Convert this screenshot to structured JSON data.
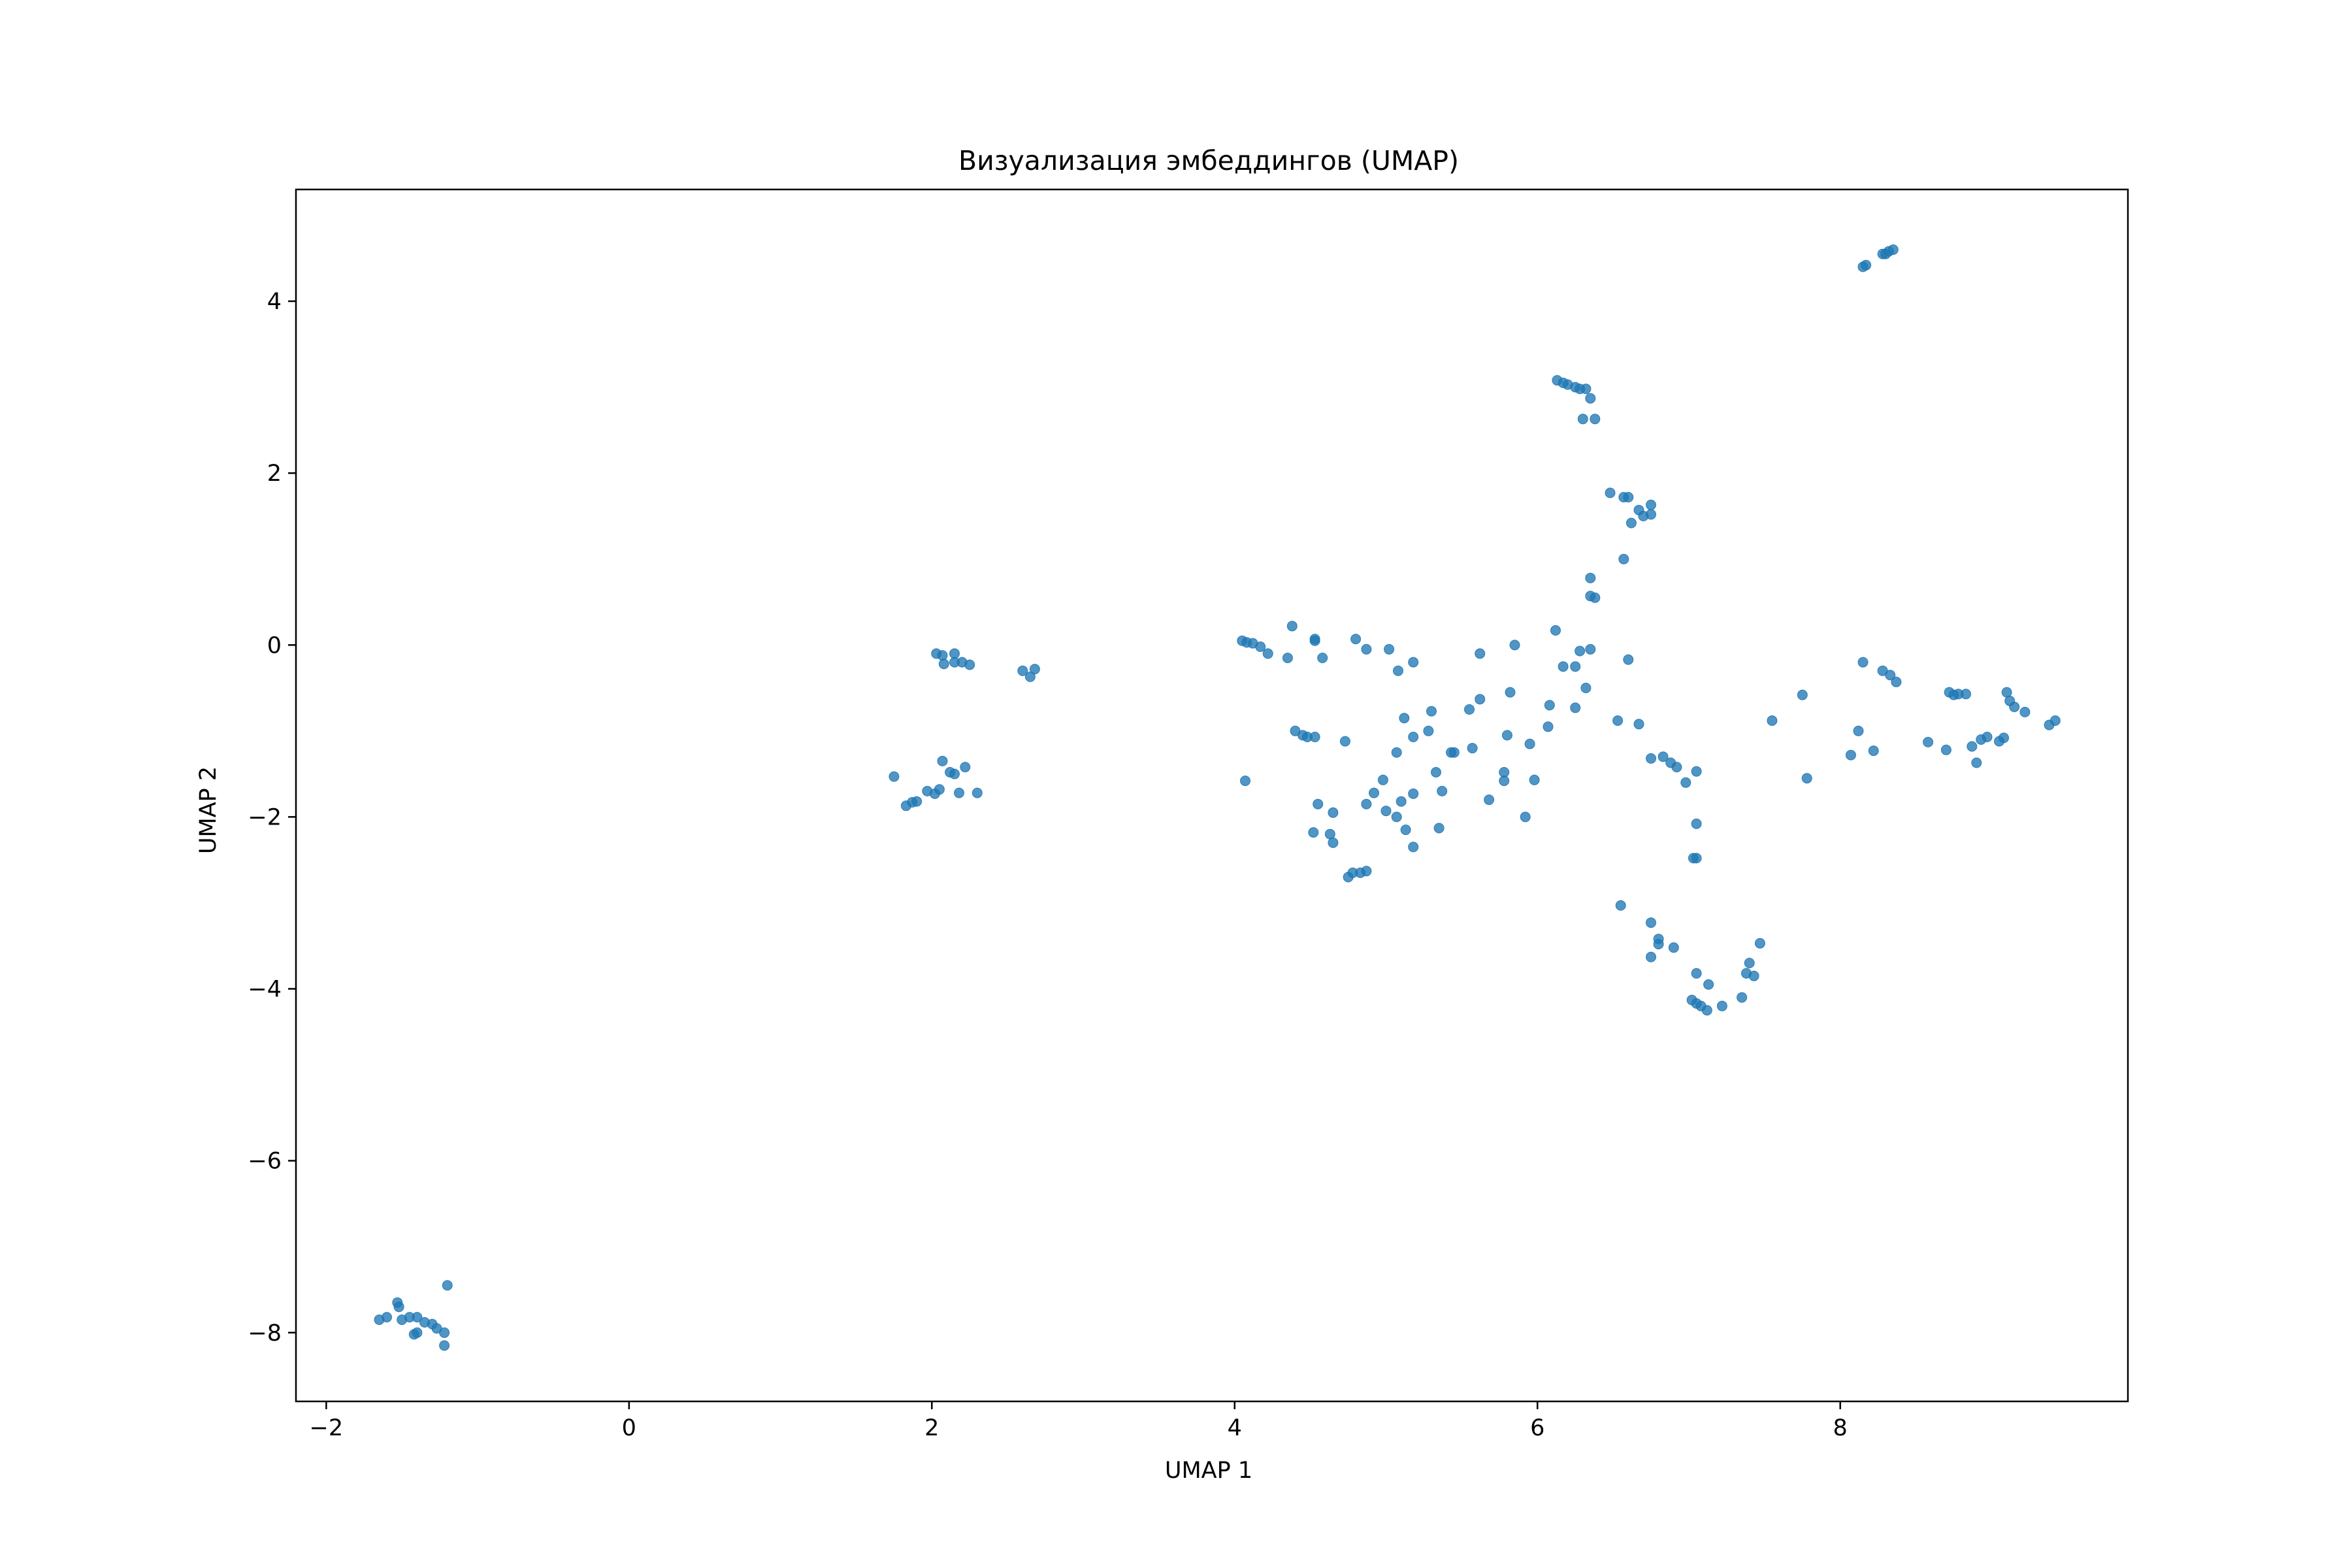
{
  "chart_data": {
    "type": "scatter",
    "title": "Визуализация эмбеддингов (UMAP)",
    "xlabel": "UMAP 1",
    "ylabel": "UMAP 2",
    "xlim": [
      -2.2,
      9.9
    ],
    "ylim": [
      -8.8,
      5.3
    ],
    "xticks": [
      {
        "value": -2,
        "label": "−2"
      },
      {
        "value": 0,
        "label": "0"
      },
      {
        "value": 2,
        "label": "2"
      },
      {
        "value": 4,
        "label": "4"
      },
      {
        "value": 6,
        "label": "6"
      },
      {
        "value": 8,
        "label": "8"
      }
    ],
    "yticks": [
      {
        "value": -8,
        "label": "−8"
      },
      {
        "value": -6,
        "label": "−6"
      },
      {
        "value": -4,
        "label": "−4"
      },
      {
        "value": -2,
        "label": "−2"
      },
      {
        "value": 0,
        "label": "0"
      },
      {
        "value": 2,
        "label": "2"
      },
      {
        "value": 4,
        "label": "4"
      }
    ],
    "grid": false,
    "color": "#1f77b4",
    "points": [
      {
        "x": -1.65,
        "y": -7.85
      },
      {
        "x": -1.6,
        "y": -7.82
      },
      {
        "x": -1.53,
        "y": -7.65
      },
      {
        "x": -1.52,
        "y": -7.7
      },
      {
        "x": -1.5,
        "y": -7.85
      },
      {
        "x": -1.45,
        "y": -7.82
      },
      {
        "x": -1.42,
        "y": -8.02
      },
      {
        "x": -1.4,
        "y": -7.82
      },
      {
        "x": -1.4,
        "y": -8.0
      },
      {
        "x": -1.35,
        "y": -7.88
      },
      {
        "x": -1.3,
        "y": -7.9
      },
      {
        "x": -1.27,
        "y": -7.95
      },
      {
        "x": -1.22,
        "y": -8.0
      },
      {
        "x": -1.22,
        "y": -8.15
      },
      {
        "x": -1.2,
        "y": -7.45
      },
      {
        "x": 1.75,
        "y": -1.53
      },
      {
        "x": 1.83,
        "y": -1.87
      },
      {
        "x": 1.87,
        "y": -1.83
      },
      {
        "x": 1.9,
        "y": -1.82
      },
      {
        "x": 1.97,
        "y": -1.7
      },
      {
        "x": 2.02,
        "y": -1.73
      },
      {
        "x": 2.05,
        "y": -1.68
      },
      {
        "x": 2.07,
        "y": -1.35
      },
      {
        "x": 2.12,
        "y": -1.48
      },
      {
        "x": 2.15,
        "y": -1.5
      },
      {
        "x": 2.22,
        "y": -1.42
      },
      {
        "x": 2.18,
        "y": -1.72
      },
      {
        "x": 2.3,
        "y": -1.72
      },
      {
        "x": 2.03,
        "y": -0.1
      },
      {
        "x": 2.07,
        "y": -0.12
      },
      {
        "x": 2.08,
        "y": -0.22
      },
      {
        "x": 2.15,
        "y": -0.1
      },
      {
        "x": 2.15,
        "y": -0.2
      },
      {
        "x": 2.2,
        "y": -0.2
      },
      {
        "x": 2.25,
        "y": -0.23
      },
      {
        "x": 2.6,
        "y": -0.3
      },
      {
        "x": 2.65,
        "y": -0.37
      },
      {
        "x": 2.68,
        "y": -0.28
      },
      {
        "x": 4.05,
        "y": 0.05
      },
      {
        "x": 4.08,
        "y": 0.03
      },
      {
        "x": 4.12,
        "y": 0.02
      },
      {
        "x": 4.17,
        "y": -0.02
      },
      {
        "x": 4.22,
        "y": -0.1
      },
      {
        "x": 4.35,
        "y": -0.15
      },
      {
        "x": 4.38,
        "y": 0.22
      },
      {
        "x": 4.53,
        "y": 0.05
      },
      {
        "x": 4.53,
        "y": 0.07
      },
      {
        "x": 4.58,
        "y": -0.15
      },
      {
        "x": 4.8,
        "y": 0.07
      },
      {
        "x": 4.87,
        "y": -0.05
      },
      {
        "x": 5.02,
        "y": -0.05
      },
      {
        "x": 5.08,
        "y": -0.3
      },
      {
        "x": 5.18,
        "y": -0.2
      },
      {
        "x": 4.07,
        "y": -1.58
      },
      {
        "x": 4.4,
        "y": -1.0
      },
      {
        "x": 4.45,
        "y": -1.05
      },
      {
        "x": 4.48,
        "y": -1.07
      },
      {
        "x": 4.53,
        "y": -1.07
      },
      {
        "x": 4.55,
        "y": -1.85
      },
      {
        "x": 4.52,
        "y": -2.18
      },
      {
        "x": 4.63,
        "y": -2.2
      },
      {
        "x": 4.65,
        "y": -1.95
      },
      {
        "x": 4.65,
        "y": -2.3
      },
      {
        "x": 4.73,
        "y": -1.12
      },
      {
        "x": 4.75,
        "y": -2.7
      },
      {
        "x": 4.78,
        "y": -2.65
      },
      {
        "x": 4.83,
        "y": -2.65
      },
      {
        "x": 4.87,
        "y": -2.63
      },
      {
        "x": 4.87,
        "y": -1.85
      },
      {
        "x": 4.92,
        "y": -1.72
      },
      {
        "x": 4.98,
        "y": -1.57
      },
      {
        "x": 5.0,
        "y": -1.93
      },
      {
        "x": 5.07,
        "y": -1.25
      },
      {
        "x": 5.07,
        "y": -2.0
      },
      {
        "x": 5.1,
        "y": -1.82
      },
      {
        "x": 5.13,
        "y": -2.15
      },
      {
        "x": 5.12,
        "y": -0.85
      },
      {
        "x": 5.18,
        "y": -1.07
      },
      {
        "x": 5.18,
        "y": -1.73
      },
      {
        "x": 5.18,
        "y": -2.35
      },
      {
        "x": 5.28,
        "y": -1.0
      },
      {
        "x": 5.3,
        "y": -0.77
      },
      {
        "x": 5.33,
        "y": -1.48
      },
      {
        "x": 5.35,
        "y": -2.13
      },
      {
        "x": 5.37,
        "y": -1.7
      },
      {
        "x": 5.43,
        "y": -1.25
      },
      {
        "x": 5.45,
        "y": -1.25
      },
      {
        "x": 5.55,
        "y": -0.75
      },
      {
        "x": 5.57,
        "y": -1.2
      },
      {
        "x": 5.62,
        "y": -0.1
      },
      {
        "x": 5.62,
        "y": -0.63
      },
      {
        "x": 5.68,
        "y": -1.8
      },
      {
        "x": 5.78,
        "y": -1.48
      },
      {
        "x": 5.78,
        "y": -1.58
      },
      {
        "x": 5.8,
        "y": -1.05
      },
      {
        "x": 5.82,
        "y": -0.55
      },
      {
        "x": 5.85,
        "y": 0.0
      },
      {
        "x": 5.92,
        "y": -2.0
      },
      {
        "x": 5.95,
        "y": -1.15
      },
      {
        "x": 5.98,
        "y": -1.57
      },
      {
        "x": 6.07,
        "y": -0.95
      },
      {
        "x": 6.08,
        "y": -0.7
      },
      {
        "x": 6.12,
        "y": 0.17
      },
      {
        "x": 6.17,
        "y": -0.25
      },
      {
        "x": 6.25,
        "y": -0.25
      },
      {
        "x": 6.25,
        "y": -0.73
      },
      {
        "x": 6.28,
        "y": -0.07
      },
      {
        "x": 6.32,
        "y": -0.5
      },
      {
        "x": 6.35,
        "y": -0.05
      },
      {
        "x": 6.53,
        "y": -0.88
      },
      {
        "x": 6.6,
        "y": -0.17
      },
      {
        "x": 6.67,
        "y": -0.92
      },
      {
        "x": 6.75,
        "y": -1.32
      },
      {
        "x": 6.83,
        "y": -1.3
      },
      {
        "x": 6.88,
        "y": -1.37
      },
      {
        "x": 6.92,
        "y": -1.42
      },
      {
        "x": 6.98,
        "y": -1.6
      },
      {
        "x": 7.05,
        "y": -1.47
      },
      {
        "x": 7.05,
        "y": -2.08
      },
      {
        "x": 7.03,
        "y": -2.48
      },
      {
        "x": 7.05,
        "y": -2.48
      },
      {
        "x": 6.55,
        "y": -3.03
      },
      {
        "x": 6.75,
        "y": -3.23
      },
      {
        "x": 6.8,
        "y": -3.42
      },
      {
        "x": 6.8,
        "y": -3.48
      },
      {
        "x": 6.75,
        "y": -3.63
      },
      {
        "x": 6.9,
        "y": -3.52
      },
      {
        "x": 7.05,
        "y": -3.82
      },
      {
        "x": 7.13,
        "y": -3.95
      },
      {
        "x": 7.02,
        "y": -4.13
      },
      {
        "x": 7.05,
        "y": -4.17
      },
      {
        "x": 7.08,
        "y": -4.2
      },
      {
        "x": 7.12,
        "y": -4.25
      },
      {
        "x": 7.22,
        "y": -4.2
      },
      {
        "x": 7.35,
        "y": -4.1
      },
      {
        "x": 7.38,
        "y": -3.82
      },
      {
        "x": 7.4,
        "y": -3.7
      },
      {
        "x": 7.43,
        "y": -3.85
      },
      {
        "x": 7.47,
        "y": -3.47
      },
      {
        "x": 6.48,
        "y": 1.77
      },
      {
        "x": 6.57,
        "y": 1.72
      },
      {
        "x": 6.6,
        "y": 1.72
      },
      {
        "x": 6.67,
        "y": 1.57
      },
      {
        "x": 6.7,
        "y": 1.5
      },
      {
        "x": 6.75,
        "y": 1.63
      },
      {
        "x": 6.75,
        "y": 1.52
      },
      {
        "x": 6.62,
        "y": 1.42
      },
      {
        "x": 6.57,
        "y": 1.0
      },
      {
        "x": 6.35,
        "y": 0.78
      },
      {
        "x": 6.35,
        "y": 0.57
      },
      {
        "x": 6.38,
        "y": 0.55
      },
      {
        "x": 6.13,
        "y": 3.08
      },
      {
        "x": 6.17,
        "y": 3.05
      },
      {
        "x": 6.2,
        "y": 3.03
      },
      {
        "x": 6.25,
        "y": 3.0
      },
      {
        "x": 6.28,
        "y": 2.98
      },
      {
        "x": 6.32,
        "y": 2.98
      },
      {
        "x": 6.35,
        "y": 2.87
      },
      {
        "x": 6.3,
        "y": 2.63
      },
      {
        "x": 6.38,
        "y": 2.63
      },
      {
        "x": 8.15,
        "y": 4.4
      },
      {
        "x": 8.17,
        "y": 4.42
      },
      {
        "x": 8.28,
        "y": 4.55
      },
      {
        "x": 8.32,
        "y": 4.58
      },
      {
        "x": 8.35,
        "y": 4.6
      },
      {
        "x": 8.3,
        "y": 4.55
      },
      {
        "x": 7.55,
        "y": -0.88
      },
      {
        "x": 7.75,
        "y": -0.58
      },
      {
        "x": 7.78,
        "y": -1.55
      },
      {
        "x": 8.07,
        "y": -1.28
      },
      {
        "x": 8.12,
        "y": -1.0
      },
      {
        "x": 8.15,
        "y": -0.2
      },
      {
        "x": 8.22,
        "y": -1.23
      },
      {
        "x": 8.28,
        "y": -0.3
      },
      {
        "x": 8.33,
        "y": -0.35
      },
      {
        "x": 8.37,
        "y": -0.43
      },
      {
        "x": 8.58,
        "y": -1.13
      },
      {
        "x": 8.7,
        "y": -1.22
      },
      {
        "x": 8.72,
        "y": -0.55
      },
      {
        "x": 8.75,
        "y": -0.58
      },
      {
        "x": 8.78,
        "y": -0.57
      },
      {
        "x": 8.83,
        "y": -0.57
      },
      {
        "x": 8.87,
        "y": -1.18
      },
      {
        "x": 8.9,
        "y": -1.37
      },
      {
        "x": 8.93,
        "y": -1.1
      },
      {
        "x": 8.97,
        "y": -1.07
      },
      {
        "x": 9.05,
        "y": -1.12
      },
      {
        "x": 9.08,
        "y": -1.08
      },
      {
        "x": 9.1,
        "y": -0.55
      },
      {
        "x": 9.12,
        "y": -0.65
      },
      {
        "x": 9.15,
        "y": -0.72
      },
      {
        "x": 9.22,
        "y": -0.78
      },
      {
        "x": 9.38,
        "y": -0.93
      },
      {
        "x": 9.42,
        "y": -0.88
      }
    ]
  }
}
